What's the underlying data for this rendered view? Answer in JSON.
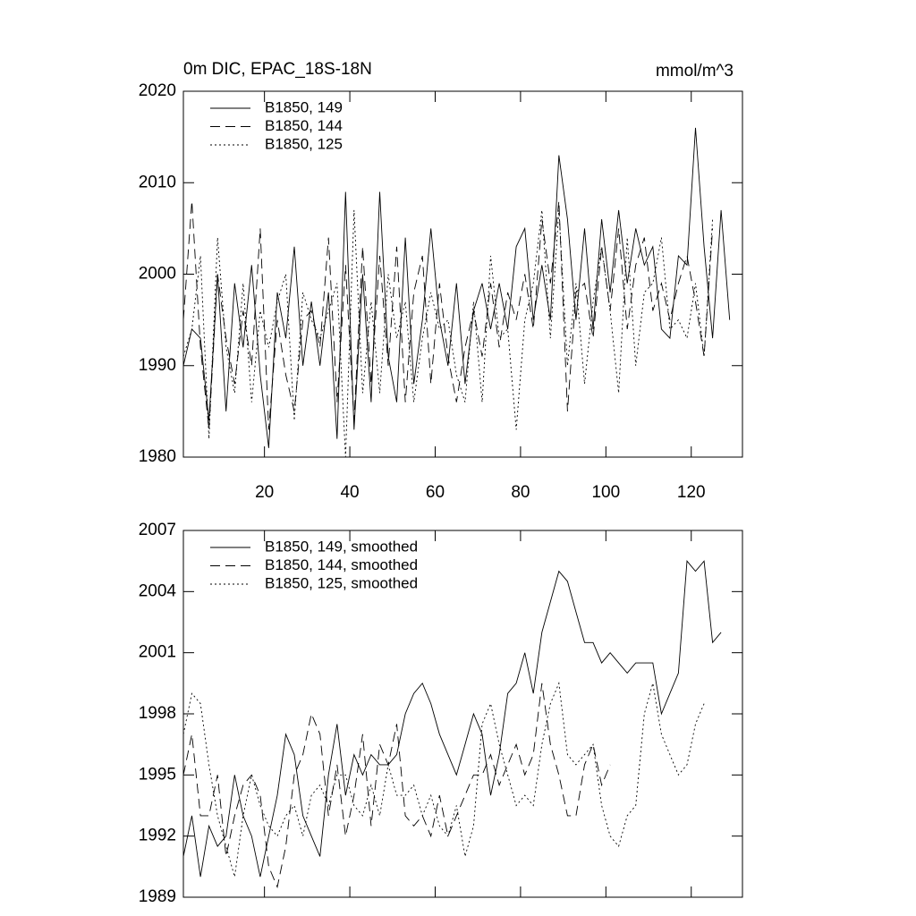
{
  "chart_data": [
    {
      "type": "line",
      "title": "0m DIC, EPAC_18S-18N",
      "units": "mmol/m^3",
      "x": [
        1,
        3,
        5,
        7,
        9,
        11,
        13,
        15,
        17,
        19,
        21,
        23,
        25,
        27,
        29,
        31,
        33,
        35,
        37,
        39,
        41,
        43,
        45,
        47,
        49,
        51,
        53,
        55,
        57,
        59,
        61,
        63,
        65,
        67,
        69,
        71,
        73,
        75,
        77,
        79,
        81,
        83,
        85,
        87,
        89,
        91,
        93,
        95,
        97,
        99,
        101,
        103,
        105,
        107,
        109,
        111,
        113,
        115,
        117,
        119,
        121,
        123,
        125,
        127,
        129
      ],
      "series": [
        {
          "name": "B1850, 149",
          "color": "#000000",
          "dash": "solid",
          "values": [
            1990,
            1994,
            1993,
            1984,
            2000,
            1985,
            1999,
            1992,
            2001,
            1989,
            1981,
            1998,
            1993,
            2003,
            1990,
            1997,
            1990,
            1998,
            1982,
            2009,
            1983,
            2000,
            1986,
            2009,
            1991,
            1986,
            2004,
            1988,
            1995,
            2005,
            1995,
            1990,
            1999,
            1988,
            1996,
            1999,
            1994,
            1999,
            1994,
            2003,
            2005,
            1995,
            2001,
            1995,
            2013,
            2006,
            1995,
            2005,
            1994,
            2006,
            1998,
            2007,
            1999,
            2005,
            2001,
            2003,
            1994,
            1993,
            2002,
            2001,
            2016,
            2003,
            1993,
            2007,
            1995
          ]
        },
        {
          "name": "B1850, 144",
          "color": "#000000",
          "dash": "dashed",
          "values": [
            1995,
            2008,
            1992,
            1983,
            2000,
            1993,
            1988,
            1996,
            1990,
            2005,
            1983,
            1995,
            1989,
            1985,
            1995,
            1996,
            1992,
            2004,
            1986,
            2001,
            1984,
            2003,
            1988,
            2002,
            1990,
            2003,
            1986,
            1998,
            2002,
            1988,
            1999,
            1991,
            1986,
            1992,
            1996,
            1991,
            1999,
            1992,
            1998,
            1995,
            2000,
            1994,
            2006,
            1999,
            2008,
            1985,
            1998,
            1999,
            1993,
            2003,
            1996,
            2005,
            1994,
            2001,
            2004,
            1996,
            1999,
            1995,
            1999,
            2002,
            1997,
            1991,
            2005,
            null,
            null
          ]
        },
        {
          "name": "B1850, 125",
          "color": "#000000",
          "dash": "dotted",
          "values": [
            1991,
            1994,
            2002,
            1982,
            2004,
            1992,
            1987,
            1999,
            1986,
            1996,
            1992,
            1997,
            2000,
            1984,
            1998,
            1995,
            1993,
            1996,
            1999,
            1980,
            2007,
            1987,
            1997,
            1987,
            2000,
            1993,
            1997,
            1986,
            1993,
            1998,
            1994,
            1995,
            1989,
            1986,
            1997,
            1986,
            2002,
            1993,
            1994,
            1983,
            1995,
            1999,
            2007,
            1993,
            2007,
            1990,
            1999,
            1988,
            1997,
            2003,
            1996,
            1987,
            2004,
            1990,
            1998,
            1999,
            2004,
            1994,
            1995,
            1993,
            1999,
            1991,
            2006,
            null,
            null
          ]
        }
      ],
      "xlim": [
        1,
        132
      ],
      "xticks": [
        20,
        40,
        60,
        80,
        100,
        120
      ],
      "xtick_labels": true,
      "ylim": [
        1980,
        2020
      ],
      "yticks": [
        1980,
        1990,
        2000,
        2010,
        2020
      ],
      "legend": "upper left"
    },
    {
      "type": "line",
      "x": [
        1,
        3,
        5,
        7,
        9,
        11,
        13,
        15,
        17,
        19,
        21,
        23,
        25,
        27,
        29,
        31,
        33,
        35,
        37,
        39,
        41,
        43,
        45,
        47,
        49,
        51,
        53,
        55,
        57,
        59,
        61,
        63,
        65,
        67,
        69,
        71,
        73,
        75,
        77,
        79,
        81,
        83,
        85,
        87,
        89,
        91,
        93,
        95,
        97,
        99,
        101,
        103,
        105,
        107,
        109,
        111,
        113,
        115,
        117,
        119,
        121,
        123,
        125,
        127,
        129
      ],
      "series": [
        {
          "name": "B1850, 149, smoothed",
          "color": "#000000",
          "dash": "solid",
          "values": [
            1991,
            1993,
            1990,
            1992.5,
            1991.5,
            1992,
            1995,
            1993,
            1992,
            1990,
            1992,
            1994,
            1997,
            1996,
            1993,
            1992,
            1991,
            1995,
            1997.5,
            1994,
            1996,
            1995,
            1996,
            1995.5,
            1995.5,
            1996,
            1998,
            1999,
            1999.5,
            1998.5,
            1997,
            1996,
            1995,
            1996.5,
            1998,
            1997,
            1994,
            1996,
            1999,
            1999.5,
            2001,
            1999,
            2002,
            2003.5,
            2005,
            2004.5,
            2003,
            2001.5,
            2001.5,
            2000.5,
            2001,
            2000.5,
            2000,
            2000.5,
            2000.5,
            2000.5,
            1998,
            1999,
            2000,
            2005.5,
            2005,
            2005.5,
            2001.5,
            2002,
            null
          ]
        },
        {
          "name": "B1850, 144, smoothed",
          "color": "#000000",
          "dash": "dashed",
          "values": [
            1995,
            1997,
            1993,
            1993,
            1995,
            1991,
            1993,
            1994.5,
            1995,
            1994,
            1990.5,
            1989.5,
            1991.5,
            1995,
            1996,
            1998,
            1997,
            1993,
            1995.5,
            1992,
            1994,
            1997,
            1992.5,
            1996.5,
            1995.5,
            1997.5,
            1993,
            1992.5,
            1993,
            1992,
            1994,
            1992,
            1993,
            1994,
            1995,
            1995,
            1996,
            1994.5,
            1995.5,
            1996.5,
            1995,
            1996,
            1999.5,
            1996.5,
            1995,
            1993,
            1993,
            1995.5,
            1996.5,
            1994.5,
            1995.5,
            null,
            null,
            null,
            null,
            null,
            null,
            null,
            null,
            null,
            null,
            null,
            null,
            null,
            null
          ]
        },
        {
          "name": "B1850, 125, smoothed",
          "color": "#000000",
          "dash": "dotted",
          "values": [
            1997,
            1999,
            1998.5,
            1995.5,
            1993,
            1991.5,
            1990,
            1993,
            1995,
            1993.5,
            1992.5,
            1992,
            1993,
            1993.5,
            1992,
            1994,
            1994.5,
            1993.5,
            1995,
            1995,
            1993.5,
            1993,
            1994.5,
            1993,
            1995.5,
            1994,
            1994,
            1994.5,
            1993,
            1994,
            1992.5,
            1992,
            1993.5,
            1991,
            1992.5,
            1997.5,
            1998.5,
            1996.5,
            1995,
            1993.5,
            1994,
            1993.5,
            1996.5,
            1998.5,
            1999.5,
            1996,
            1995.5,
            1996,
            1996.5,
            1993.5,
            1992,
            1991.5,
            1993,
            1993.5,
            1998,
            1999.5,
            1997,
            1996,
            1995,
            1995.5,
            1997.5,
            1998.5,
            null,
            null,
            null
          ]
        }
      ],
      "xlim": [
        1,
        132
      ],
      "xticks": [
        20,
        40,
        60,
        80,
        100,
        120
      ],
      "xtick_labels": false,
      "ylim": [
        1989,
        2007
      ],
      "yticks": [
        1989,
        1992,
        1995,
        1998,
        2001,
        2004,
        2007
      ],
      "legend": "upper left"
    }
  ]
}
